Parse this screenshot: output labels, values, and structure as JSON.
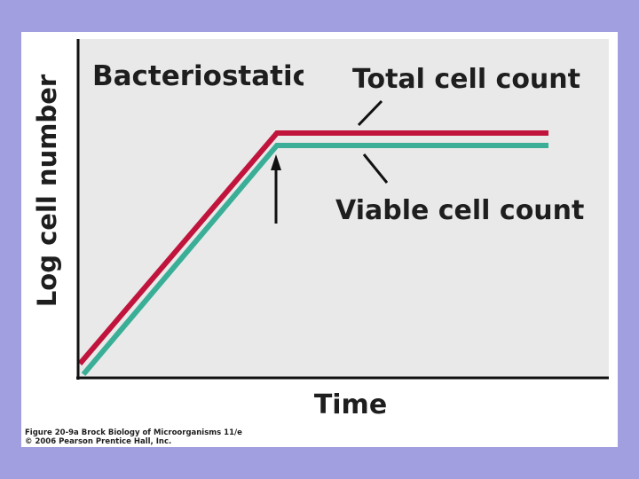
{
  "figure": {
    "title": "Bacteriostatic",
    "labels": {
      "total": "Total cell count",
      "viable": "Viable cell count"
    },
    "axes": {
      "y": "Log cell number",
      "x": "Time"
    },
    "caption": [
      "Figure 20-9a Brock Biology of Microorganisms 11/e",
      "© 2006 Pearson Prentice Hall, Inc."
    ]
  }
}
